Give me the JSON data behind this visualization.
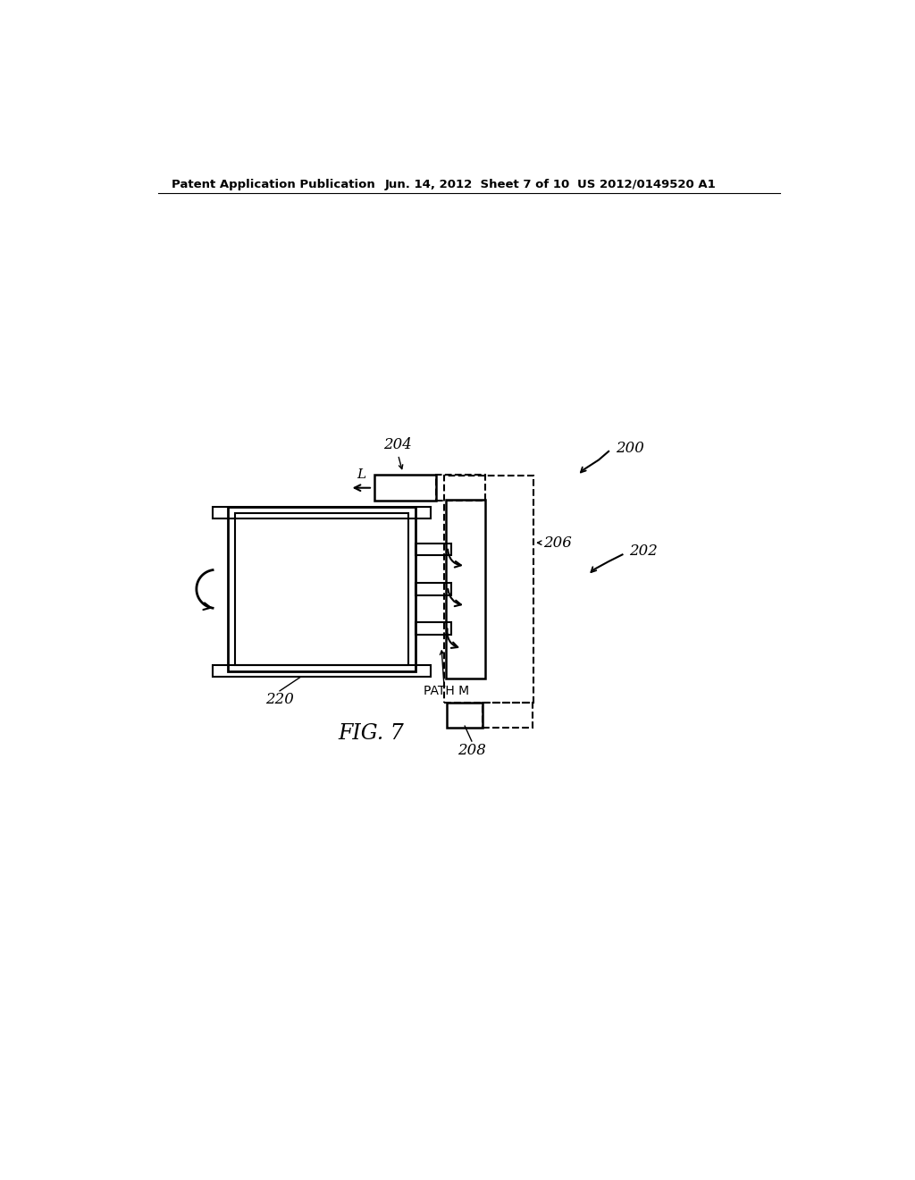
{
  "bg_color": "#ffffff",
  "line_color": "#000000",
  "header_left": "Patent Application Publication",
  "header_mid": "Jun. 14, 2012  Sheet 7 of 10",
  "header_right": "US 2012/0149520 A1",
  "figure_label": "FIG. 7",
  "label_200": "200",
  "label_202": "202",
  "label_204": "204",
  "label_206": "206",
  "label_208": "208",
  "label_220": "220",
  "label_L": "L",
  "label_PATH_M": "PATH M"
}
